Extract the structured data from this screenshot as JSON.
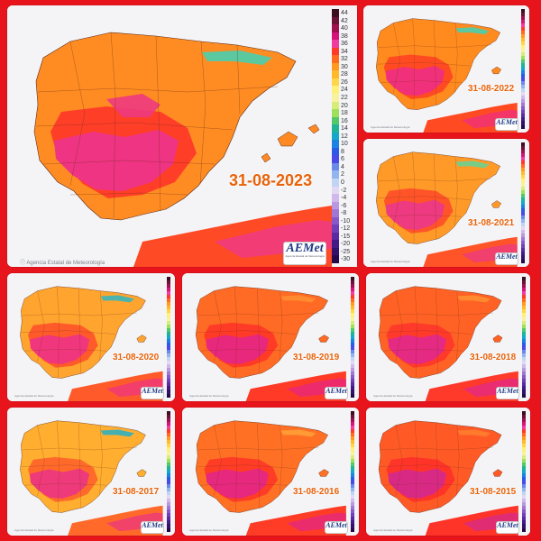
{
  "page": {
    "background_color": "#e8141c"
  },
  "main_map": {
    "date": "31-08-2023",
    "footer": "Agencia Estatal de Meteorología",
    "logo": {
      "brand": "AEMet",
      "sub": "Agencia Estatal de Meteorología"
    }
  },
  "legend": {
    "values": [
      "44",
      "42",
      "40",
      "38",
      "36",
      "34",
      "32",
      "30",
      "28",
      "26",
      "24",
      "22",
      "20",
      "18",
      "16",
      "14",
      "12",
      "10",
      "8",
      "6",
      "4",
      "2",
      "0",
      "-2",
      "-4",
      "-6",
      "-8",
      "-10",
      "-12",
      "-15",
      "-20",
      "-25",
      "-30"
    ],
    "colors": [
      "#3d0d20",
      "#6a1238",
      "#a0104e",
      "#d4147a",
      "#f03ca0",
      "#ff3a2a",
      "#ff6a1e",
      "#ff9a1e",
      "#ffba2a",
      "#ffd64a",
      "#fff07a",
      "#f8f2a0",
      "#d8ec7a",
      "#9ee05a",
      "#52c86a",
      "#20b496",
      "#16a8c8",
      "#1a82e0",
      "#2a5ae6",
      "#4a4ae8",
      "#6a8ae8",
      "#94b4ee",
      "#c0d4f4",
      "#e2d8f4",
      "#d0b8ec",
      "#b898e0",
      "#a078d4",
      "#8858c8",
      "#7040b8",
      "#5a2aa0",
      "#441a88",
      "#34126a",
      "#240a4a"
    ]
  },
  "maps": [
    {
      "id": "2022",
      "date": "31-08-2022",
      "footer": "Agencia Estatal de Meteorología",
      "logo": "AEMet",
      "palette": {
        "land": "#ff8a1e",
        "hot": "#f0307a",
        "warm": "#ff4a22",
        "cool": "#5cc8a0",
        "sea": "#d0d0d6"
      }
    },
    {
      "id": "2021",
      "date": "31-08-2021",
      "footer": "Agencia Estatal de Meteorología",
      "logo": "AEMet",
      "palette": {
        "land": "#ff9a28",
        "hot": "#ee3a80",
        "warm": "#ff5428",
        "cool": "#78cc88",
        "sea": "#d0d0d6"
      }
    },
    {
      "id": "2020",
      "date": "31-08-2020",
      "footer": "Agencia Estatal de Meteorología",
      "logo": "AEMet",
      "palette": {
        "land": "#ffa42e",
        "hot": "#f0367c",
        "warm": "#ff5a2a",
        "cool": "#4cb4ac",
        "sea": "#d0d0d6"
      }
    },
    {
      "id": "2019",
      "date": "31-08-2019",
      "footer": "Agencia Estatal de Meteorología",
      "logo": "AEMet",
      "palette": {
        "land": "#ff6a24",
        "hot": "#e8287c",
        "warm": "#ff3a26",
        "cool": "#ff8a30",
        "sea": "#d0d0d6"
      }
    },
    {
      "id": "2018",
      "date": "31-08-2018",
      "footer": "Agencia Estatal de Meteorología",
      "logo": "AEMet",
      "palette": {
        "land": "#ff6224",
        "hot": "#e42a82",
        "warm": "#ff3a2a",
        "cool": "#ff8a30",
        "sea": "#d0d0d6"
      }
    },
    {
      "id": "2017",
      "date": "31-08-2017",
      "footer": "Agencia Estatal de Meteorología",
      "logo": "AEMet",
      "palette": {
        "land": "#ffae30",
        "hot": "#ee3a7a",
        "warm": "#ff6a2a",
        "cool": "#46b0b0",
        "sea": "#d0d0d6"
      }
    },
    {
      "id": "2016",
      "date": "31-08-2016",
      "footer": "Agencia Estatal de Meteorología",
      "logo": "AEMet",
      "palette": {
        "land": "#ff7024",
        "hot": "#e6287e",
        "warm": "#ff3c26",
        "cool": "#ff9a34",
        "sea": "#d0d0d6"
      }
    },
    {
      "id": "2015",
      "date": "31-08-2015",
      "footer": "Agencia Estatal de Meteorología",
      "logo": "AEMet",
      "palette": {
        "land": "#ff5a26",
        "hot": "#d82a84",
        "warm": "#ff3428",
        "cool": "#ff7a2c",
        "sea": "#d0d0d6"
      }
    }
  ]
}
